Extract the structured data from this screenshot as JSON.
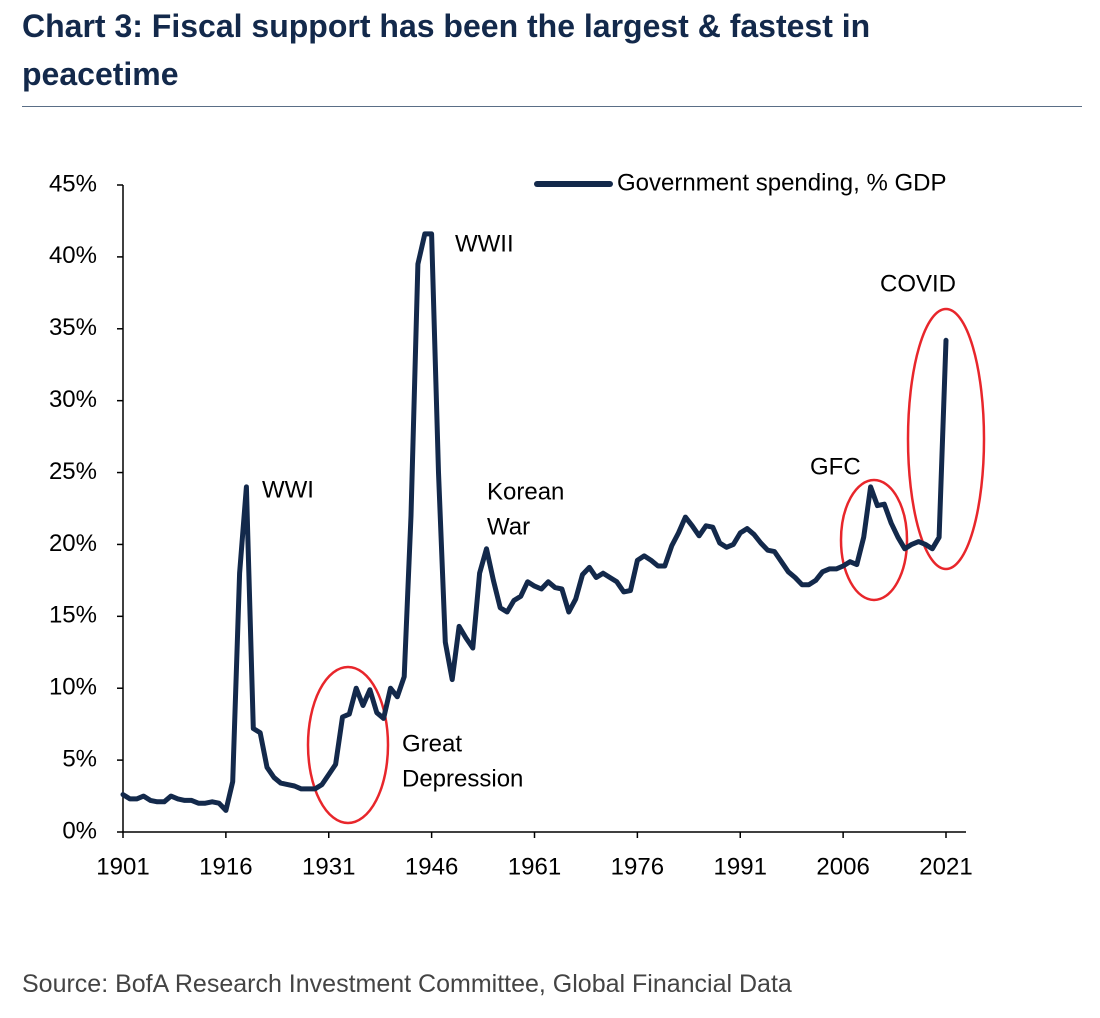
{
  "chart_data": {
    "type": "line",
    "title": "Chart 3: Fiscal support has been the largest & fastest in peacetime",
    "source": "Source: BofA Research Investment Committee, Global Financial Data",
    "x": [
      1901,
      1902,
      1903,
      1904,
      1905,
      1906,
      1907,
      1908,
      1909,
      1910,
      1911,
      1912,
      1913,
      1914,
      1915,
      1916,
      1917,
      1918,
      1919,
      1920,
      1921,
      1922,
      1923,
      1924,
      1925,
      1926,
      1927,
      1928,
      1929,
      1930,
      1931,
      1932,
      1933,
      1934,
      1935,
      1936,
      1937,
      1938,
      1939,
      1940,
      1941,
      1942,
      1943,
      1944,
      1945,
      1946,
      1947,
      1948,
      1949,
      1950,
      1951,
      1952,
      1953,
      1954,
      1955,
      1956,
      1957,
      1958,
      1959,
      1960,
      1961,
      1962,
      1963,
      1964,
      1965,
      1966,
      1967,
      1968,
      1969,
      1970,
      1971,
      1972,
      1973,
      1974,
      1975,
      1976,
      1977,
      1978,
      1979,
      1980,
      1981,
      1982,
      1983,
      1984,
      1985,
      1986,
      1987,
      1988,
      1989,
      1990,
      1991,
      1992,
      1993,
      1994,
      1995,
      1996,
      1997,
      1998,
      1999,
      2000,
      2001,
      2002,
      2003,
      2004,
      2005,
      2006,
      2007,
      2008,
      2009,
      2010,
      2011,
      2012,
      2013,
      2014,
      2015,
      2016,
      2017,
      2018,
      2019,
      2020,
      2021
    ],
    "series": [
      {
        "name": "Government spending, % GDP",
        "color": "#13294b",
        "values": [
          2.6,
          2.3,
          2.3,
          2.5,
          2.2,
          2.1,
          2.1,
          2.5,
          2.3,
          2.2,
          2.2,
          2.0,
          2.0,
          2.1,
          2.0,
          1.5,
          3.5,
          18.0,
          24.0,
          7.2,
          6.9,
          4.5,
          3.8,
          3.4,
          3.3,
          3.2,
          3.0,
          3.0,
          3.0,
          3.3,
          4.0,
          4.7,
          8.0,
          8.2,
          10.0,
          8.8,
          9.9,
          8.3,
          7.9,
          10.0,
          9.4,
          10.8,
          22.0,
          39.5,
          41.6,
          41.6,
          25.0,
          13.2,
          10.6,
          14.3,
          13.5,
          12.8,
          18.0,
          19.7,
          17.5,
          15.6,
          15.3,
          16.1,
          16.4,
          17.4,
          17.1,
          16.9,
          17.4,
          17.0,
          16.9,
          15.3,
          16.2,
          17.9,
          18.4,
          17.7,
          18.0,
          17.7,
          17.4,
          16.7,
          16.8,
          18.9,
          19.2,
          18.9,
          18.5,
          18.5,
          19.9,
          20.8,
          21.9,
          21.3,
          20.6,
          21.3,
          21.2,
          20.1,
          19.8,
          20.0,
          20.8,
          21.1,
          20.7,
          20.1,
          19.6,
          19.5,
          18.8,
          18.1,
          17.7,
          17.2,
          17.2,
          17.5,
          18.1,
          18.3,
          18.3,
          18.5,
          18.8,
          18.6,
          20.5,
          24.0,
          22.7,
          22.8,
          21.5,
          20.5,
          19.7,
          20.0,
          20.2,
          20.0,
          19.7,
          20.5,
          34.2
        ]
      }
    ],
    "xlim": [
      1901,
      2021
    ],
    "xticks": [
      1901,
      1916,
      1931,
      1946,
      1961,
      1976,
      1991,
      2006,
      2021
    ],
    "ylim": [
      0,
      45
    ],
    "yticks": [
      {
        "value": 0,
        "label": "0%"
      },
      {
        "value": 5,
        "label": "5%"
      },
      {
        "value": 10,
        "label": "10%"
      },
      {
        "value": 15,
        "label": "15%"
      },
      {
        "value": 20,
        "label": "20%"
      },
      {
        "value": 25,
        "label": "25%"
      },
      {
        "value": 30,
        "label": "30%"
      },
      {
        "value": 35,
        "label": "35%"
      },
      {
        "value": 40,
        "label": "40%"
      },
      {
        "value": 45,
        "label": "45%"
      }
    ],
    "annotations": [
      [
        "WWI"
      ],
      [
        "WWII"
      ],
      [
        "Korean",
        "War"
      ],
      [
        "Great",
        "Depression"
      ],
      [
        "GFC"
      ],
      [
        "COVID"
      ]
    ],
    "legend": "top-right"
  }
}
